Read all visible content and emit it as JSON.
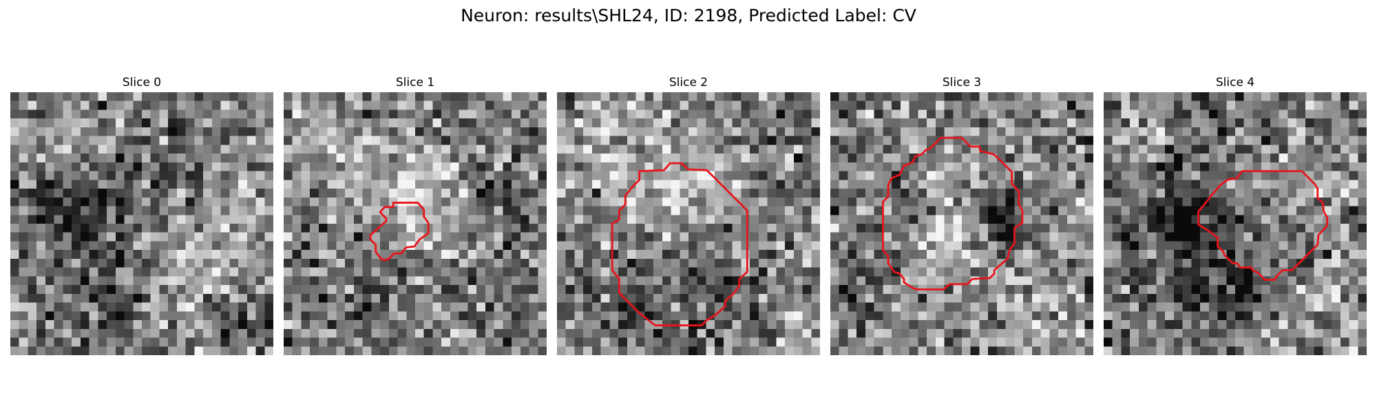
{
  "figure": {
    "title": "Neuron: results\\SHL24, ID: 2198, Predicted Label: CV",
    "contour_color": "#e8141b"
  },
  "panels": [
    {
      "title": "Slice 0",
      "seed": 11,
      "blobs": [
        [
          7,
          14,
          5,
          -70
        ],
        [
          17,
          8,
          4,
          -40
        ],
        [
          19,
          20,
          5,
          50
        ],
        [
          27,
          12,
          4,
          40
        ],
        [
          11,
          25,
          4,
          -55
        ],
        [
          27,
          26,
          3,
          -60
        ],
        [
          8,
          5,
          3,
          30
        ]
      ],
      "contour": []
    },
    {
      "title": "Slice 1",
      "seed": 23,
      "blobs": [
        [
          15,
          11,
          4,
          70
        ],
        [
          5,
          4,
          3,
          40
        ],
        [
          10,
          23,
          3,
          -30
        ],
        [
          23,
          11,
          2,
          -60
        ],
        [
          25,
          23,
          4,
          -40
        ],
        [
          21,
          28,
          3,
          40
        ]
      ],
      "contour": [
        [
          12.5,
          12.6
        ],
        [
          15.3,
          12.6
        ],
        [
          16.0,
          13.4
        ],
        [
          16.0,
          14.2
        ],
        [
          16.5,
          14.9
        ],
        [
          16.5,
          16.1
        ],
        [
          15.5,
          16.8
        ],
        [
          14.9,
          17.6
        ],
        [
          14.0,
          17.7
        ],
        [
          13.4,
          18.4
        ],
        [
          12.6,
          18.4
        ],
        [
          11.9,
          19.1
        ],
        [
          11.2,
          19.1
        ],
        [
          10.5,
          18.2
        ],
        [
          10.5,
          17.4
        ],
        [
          9.9,
          16.8
        ],
        [
          9.9,
          16.3
        ],
        [
          11.7,
          14.7
        ],
        [
          11.7,
          14.4
        ],
        [
          11.0,
          13.7
        ],
        [
          11.5,
          13.1
        ],
        [
          12.5,
          13.1
        ]
      ]
    },
    {
      "title": "Slice 2",
      "seed": 37,
      "blobs": [
        [
          13,
          11,
          5,
          70
        ],
        [
          18,
          21,
          6,
          -45
        ],
        [
          21,
          16,
          3,
          35
        ],
        [
          9,
          22,
          3,
          -30
        ],
        [
          4,
          4,
          3,
          40
        ],
        [
          26,
          4,
          3,
          -30
        ],
        [
          28,
          27,
          4,
          40
        ]
      ],
      "contour": [
        [
          9.4,
          9.0
        ],
        [
          12.2,
          8.9
        ],
        [
          12.9,
          8.1
        ],
        [
          14.2,
          8.1
        ],
        [
          15.0,
          8.8
        ],
        [
          17.1,
          8.9
        ],
        [
          21.7,
          13.5
        ],
        [
          21.7,
          20.5
        ],
        [
          20.8,
          21.3
        ],
        [
          20.8,
          22.1
        ],
        [
          20.1,
          23.0
        ],
        [
          19.2,
          23.8
        ],
        [
          19.2,
          24.4
        ],
        [
          18.1,
          25.4
        ],
        [
          17.1,
          26.0
        ],
        [
          16.5,
          26.6
        ],
        [
          11.2,
          26.6
        ],
        [
          9.4,
          25.2
        ],
        [
          8.6,
          24.4
        ],
        [
          7.1,
          22.9
        ],
        [
          7.1,
          21.3
        ],
        [
          6.3,
          20.3
        ],
        [
          6.3,
          15.0
        ],
        [
          7.1,
          14.5
        ],
        [
          7.1,
          13.5
        ],
        [
          7.8,
          12.8
        ],
        [
          7.8,
          11.8
        ],
        [
          8.6,
          10.8
        ],
        [
          9.4,
          10.0
        ]
      ]
    },
    {
      "title": "Slice 3",
      "seed": 53,
      "blobs": [
        [
          14,
          16,
          4,
          60
        ],
        [
          19,
          14,
          3,
          -70
        ],
        [
          16,
          8,
          3,
          40
        ],
        [
          20,
          13,
          2,
          -40
        ],
        [
          4,
          20,
          3,
          -30
        ],
        [
          10,
          26,
          4,
          30
        ],
        [
          22,
          25,
          3,
          40
        ]
      ],
      "contour": [
        [
          12.6,
          5.2
        ],
        [
          15.0,
          5.2
        ],
        [
          16.0,
          6.2
        ],
        [
          17.0,
          6.2
        ],
        [
          17.1,
          6.7
        ],
        [
          18.7,
          7.1
        ],
        [
          20.7,
          9.1
        ],
        [
          20.7,
          10.4
        ],
        [
          21.5,
          11.3
        ],
        [
          21.5,
          12.8
        ],
        [
          21.9,
          13.5
        ],
        [
          21.9,
          14.9
        ],
        [
          21.0,
          15.5
        ],
        [
          21.0,
          17.3
        ],
        [
          20.5,
          17.9
        ],
        [
          20.2,
          19.0
        ],
        [
          18.7,
          20.3
        ],
        [
          18.7,
          20.7
        ],
        [
          18.2,
          21.2
        ],
        [
          16.2,
          21.3
        ],
        [
          15.6,
          21.9
        ],
        [
          13.6,
          21.9
        ],
        [
          12.9,
          22.5
        ],
        [
          10.0,
          22.5
        ],
        [
          9.5,
          22.4
        ],
        [
          8.4,
          21.7
        ],
        [
          8.4,
          21.3
        ],
        [
          7.9,
          20.7
        ],
        [
          7.3,
          20.5
        ],
        [
          6.6,
          19.5
        ],
        [
          6.6,
          18.7
        ],
        [
          6.0,
          18.0
        ],
        [
          6.0,
          12.5
        ],
        [
          6.6,
          11.9
        ],
        [
          6.6,
          10.6
        ],
        [
          7.0,
          9.8
        ],
        [
          7.9,
          9.4
        ],
        [
          8.4,
          8.4
        ],
        [
          9.4,
          8.0
        ],
        [
          9.7,
          7.3
        ],
        [
          10.4,
          7.1
        ],
        [
          10.9,
          6.6
        ],
        [
          11.4,
          6.4
        ],
        [
          12.6,
          5.2
        ]
      ]
    },
    {
      "title": "Slice 4",
      "seed": 71,
      "blobs": [
        [
          11,
          17,
          6,
          -80
        ],
        [
          18,
          13,
          4,
          35
        ],
        [
          11,
          2,
          3,
          -40
        ],
        [
          4,
          4,
          2,
          50
        ],
        [
          24,
          12,
          3,
          30
        ],
        [
          7,
          12,
          3,
          -30
        ],
        [
          24,
          25,
          4,
          30
        ],
        [
          16,
          22,
          3,
          -40
        ]
      ],
      "contour": [
        [
          17.7,
          9.0
        ],
        [
          22.6,
          9.0
        ],
        [
          24.1,
          10.5
        ],
        [
          24.4,
          11.0
        ],
        [
          24.4,
          12.1
        ],
        [
          25.0,
          12.6
        ],
        [
          25.1,
          13.6
        ],
        [
          25.5,
          14.3
        ],
        [
          25.5,
          15.2
        ],
        [
          24.5,
          16.3
        ],
        [
          24.4,
          17.4
        ],
        [
          22.9,
          18.9
        ],
        [
          21.5,
          20.3
        ],
        [
          20.4,
          20.3
        ],
        [
          19.8,
          20.9
        ],
        [
          19.5,
          21.4
        ],
        [
          18.4,
          21.4
        ],
        [
          17.6,
          20.6
        ],
        [
          17.0,
          20.3
        ],
        [
          16.9,
          20.0
        ],
        [
          15.6,
          20.0
        ],
        [
          15.2,
          19.5
        ],
        [
          14.7,
          19.5
        ],
        [
          13.8,
          18.6
        ],
        [
          13.6,
          18.1
        ],
        [
          13.0,
          17.6
        ],
        [
          13.0,
          16.6
        ],
        [
          12.1,
          15.9
        ],
        [
          10.8,
          15.1
        ],
        [
          10.8,
          13.6
        ],
        [
          11.5,
          12.8
        ],
        [
          12.1,
          12.0
        ],
        [
          12.6,
          11.4
        ],
        [
          13.3,
          10.6
        ],
        [
          14.1,
          10.0
        ],
        [
          15.2,
          9.8
        ],
        [
          15.8,
          9.0
        ],
        [
          17.7,
          9.0
        ]
      ]
    }
  ]
}
